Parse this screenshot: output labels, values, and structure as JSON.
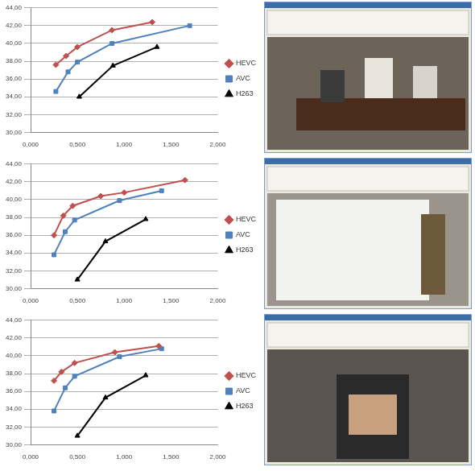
{
  "chart_data": [
    {
      "type": "line",
      "xlim": [
        0,
        2
      ],
      "ylim": [
        30,
        44
      ],
      "xticks": [
        {
          "value": 0,
          "label": "0,000"
        },
        {
          "value": 0.5,
          "label": "0,500"
        },
        {
          "value": 1,
          "label": "1,000"
        },
        {
          "value": 1.5,
          "label": "1,500"
        },
        {
          "value": 2,
          "label": "2,000"
        }
      ],
      "yticks": [
        {
          "value": 30,
          "label": "30,00"
        },
        {
          "value": 32,
          "label": "32,00"
        },
        {
          "value": 34,
          "label": "34,00"
        },
        {
          "value": 36,
          "label": "36,00"
        },
        {
          "value": 38,
          "label": "38,00"
        },
        {
          "value": 40,
          "label": "40,00"
        },
        {
          "value": 42,
          "label": "42,00"
        },
        {
          "value": 44,
          "label": "44,00"
        }
      ],
      "grid": true,
      "legend": "right",
      "series": [
        {
          "name": "HEVC",
          "color": "#c0504d",
          "marker": "diamond",
          "x": [
            0.27,
            0.38,
            0.5,
            0.87,
            1.3
          ],
          "values": [
            37.6,
            38.6,
            39.6,
            41.5,
            42.4
          ]
        },
        {
          "name": "AVC",
          "color": "#4f81bd",
          "marker": "square",
          "x": [
            0.27,
            0.4,
            0.5,
            0.87,
            1.7
          ],
          "values": [
            34.6,
            36.8,
            37.9,
            40.0,
            42.0
          ]
        },
        {
          "name": "H263",
          "color": "#000000",
          "marker": "triangle",
          "x": [
            0.52,
            0.88,
            1.35
          ],
          "values": [
            34.0,
            37.5,
            39.6
          ]
        }
      ]
    },
    {
      "type": "line",
      "xlim": [
        0,
        2
      ],
      "ylim": [
        30,
        44
      ],
      "xticks": [
        {
          "value": 0,
          "label": "0,000"
        },
        {
          "value": 0.5,
          "label": "0,500"
        },
        {
          "value": 1,
          "label": "1,000"
        },
        {
          "value": 1.5,
          "label": "1,500"
        },
        {
          "value": 2,
          "label": "2,000"
        }
      ],
      "yticks": [
        {
          "value": 30,
          "label": "30,00"
        },
        {
          "value": 32,
          "label": "32,00"
        },
        {
          "value": 34,
          "label": "34,00"
        },
        {
          "value": 36,
          "label": "36,00"
        },
        {
          "value": 38,
          "label": "38,00"
        },
        {
          "value": 40,
          "label": "40,00"
        },
        {
          "value": 42,
          "label": "42,00"
        },
        {
          "value": 44,
          "label": "44,00"
        }
      ],
      "grid": true,
      "legend": "right",
      "series": [
        {
          "name": "HEVC",
          "color": "#c0504d",
          "marker": "diamond",
          "x": [
            0.25,
            0.35,
            0.45,
            0.75,
            1.0,
            1.65
          ],
          "values": [
            36.0,
            38.2,
            39.3,
            40.4,
            40.8,
            42.2
          ]
        },
        {
          "name": "AVC",
          "color": "#4f81bd",
          "marker": "square",
          "x": [
            0.25,
            0.37,
            0.47,
            0.95,
            1.4
          ],
          "values": [
            33.8,
            36.4,
            37.7,
            39.9,
            41.0
          ]
        },
        {
          "name": "H263",
          "color": "#000000",
          "marker": "triangle",
          "x": [
            0.5,
            0.8,
            1.23
          ],
          "values": [
            31.0,
            35.3,
            37.8
          ]
        }
      ]
    },
    {
      "type": "line",
      "xlim": [
        0,
        2
      ],
      "ylim": [
        30,
        44
      ],
      "xticks": [
        {
          "value": 0,
          "label": "0,000"
        },
        {
          "value": 0.5,
          "label": "0,500"
        },
        {
          "value": 1,
          "label": "1,000"
        },
        {
          "value": 1.5,
          "label": "1,500"
        },
        {
          "value": 2,
          "label": "2,000"
        }
      ],
      "yticks": [
        {
          "value": 30,
          "label": "30,00"
        },
        {
          "value": 32,
          "label": "32,00"
        },
        {
          "value": 34,
          "label": "34,00"
        },
        {
          "value": 36,
          "label": "36,00"
        },
        {
          "value": 38,
          "label": "38,00"
        },
        {
          "value": 40,
          "label": "40,00"
        },
        {
          "value": 42,
          "label": "42,00"
        },
        {
          "value": 44,
          "label": "44,00"
        }
      ],
      "grid": true,
      "legend": "right",
      "series": [
        {
          "name": "HEVC",
          "color": "#c0504d",
          "marker": "diamond",
          "x": [
            0.25,
            0.33,
            0.47,
            0.9,
            1.37
          ],
          "values": [
            37.2,
            38.2,
            39.2,
            40.4,
            41.1
          ]
        },
        {
          "name": "AVC",
          "color": "#4f81bd",
          "marker": "square",
          "x": [
            0.25,
            0.37,
            0.47,
            0.95,
            1.4
          ],
          "values": [
            33.8,
            36.4,
            37.7,
            39.9,
            40.8
          ]
        },
        {
          "name": "H263",
          "color": "#000000",
          "marker": "triangle",
          "x": [
            0.5,
            0.8,
            1.23
          ],
          "values": [
            31.0,
            35.3,
            37.8
          ]
        }
      ]
    }
  ]
}
